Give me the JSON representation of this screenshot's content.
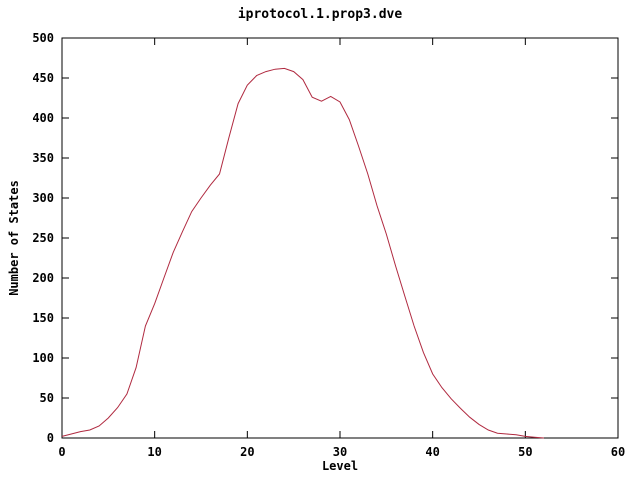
{
  "window": {
    "background_color": "#ffffff",
    "text_color": "#000000"
  },
  "chart": {
    "title": "iprotocol.1.prop3.dve",
    "xlabel": "Level",
    "ylabel": "Number of States"
  },
  "chart_data": {
    "type": "line",
    "title": "iprotocol.1.prop3.dve",
    "xlabel": "Level",
    "ylabel": "Number of States",
    "xlim": [
      0,
      60
    ],
    "ylim": [
      0,
      500
    ],
    "xticks": [
      0,
      10,
      20,
      30,
      40,
      50,
      60
    ],
    "yticks": [
      0,
      50,
      100,
      150,
      200,
      250,
      300,
      350,
      400,
      450,
      500
    ],
    "grid": false,
    "legend_position": "none",
    "border_color": "#000000",
    "line_color": "#b02a40",
    "series": [
      {
        "name": "iprotocol.1.prop3.dve",
        "x": [
          0,
          1,
          2,
          3,
          4,
          5,
          6,
          7,
          8,
          9,
          10,
          11,
          12,
          13,
          14,
          15,
          16,
          17,
          18,
          19,
          20,
          21,
          22,
          23,
          24,
          25,
          26,
          27,
          28,
          29,
          30,
          31,
          32,
          33,
          34,
          35,
          36,
          37,
          38,
          39,
          40,
          41,
          42,
          43,
          44,
          45,
          46,
          47,
          48,
          49,
          50,
          51,
          52
        ],
        "y": [
          2,
          5,
          8,
          10,
          15,
          25,
          38,
          55,
          88,
          140,
          168,
          200,
          232,
          258,
          283,
          300,
          316,
          330,
          375,
          418,
          441,
          453,
          458,
          461,
          462,
          458,
          448,
          426,
          421,
          427,
          420,
          398,
          365,
          330,
          290,
          255,
          215,
          177,
          140,
          107,
          80,
          63,
          49,
          37,
          26,
          17,
          10,
          6,
          5,
          4,
          2,
          1,
          0
        ]
      }
    ]
  }
}
